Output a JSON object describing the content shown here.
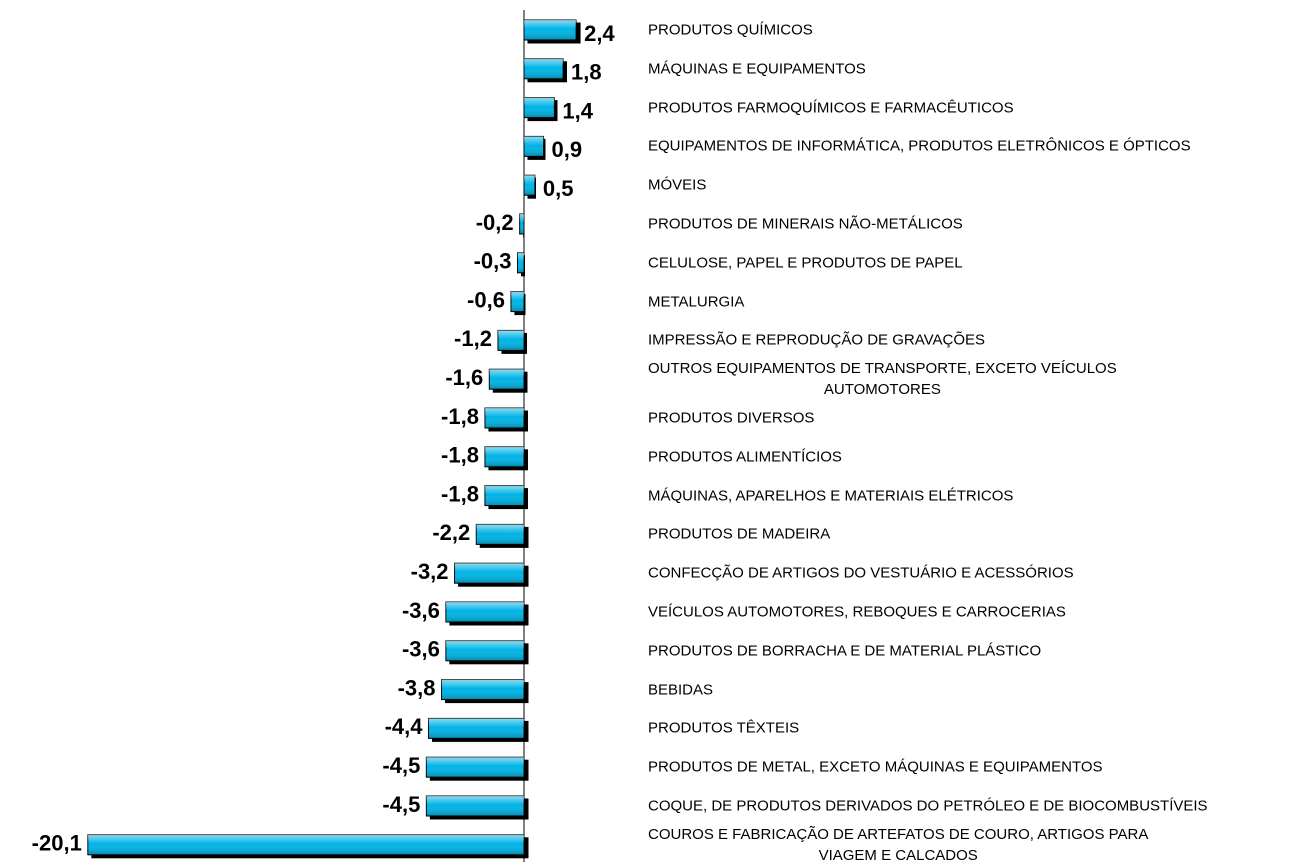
{
  "chart_data": {
    "type": "hbar",
    "categories": [
      "PRODUTOS QUÍMICOS",
      "MÁQUINAS E EQUIPAMENTOS",
      "PRODUTOS FARMOQUÍMICOS E FARMACÊUTICOS",
      "EQUIPAMENTOS DE INFORMÁTICA, PRODUTOS ELETRÔNICOS E ÓPTICOS",
      "MÓVEIS",
      "PRODUTOS DE MINERAIS NÃO-METÁLICOS",
      "CELULOSE, PAPEL E PRODUTOS DE PAPEL",
      "METALURGIA",
      "IMPRESSÃO E REPRODUÇÃO DE GRAVAÇÕES",
      "OUTROS EQUIPAMENTOS DE TRANSPORTE, EXCETO VEÍCULOS\nAUTOMOTORES",
      "PRODUTOS DIVERSOS",
      "PRODUTOS ALIMENTÍCIOS",
      "MÁQUINAS, APARELHOS E MATERIAIS ELÉTRICOS",
      "PRODUTOS DE MADEIRA",
      "CONFECÇÃO DE ARTIGOS DO VESTUÁRIO E ACESSÓRIOS",
      "VEÍCULOS AUTOMOTORES, REBOQUES E CARROCERIAS",
      "PRODUTOS DE BORRACHA E DE MATERIAL PLÁSTICO",
      "BEBIDAS",
      "PRODUTOS TÊXTEIS",
      "PRODUTOS DE METAL, EXCETO MÁQUINAS E EQUIPAMENTOS",
      "COQUE, DE PRODUTOS DERIVADOS DO PETRÓLEO E DE BIOCOMBUSTÍVEIS",
      "COUROS E FABRICAÇÃO DE ARTEFATOS DE COURO, ARTIGOS PARA\nVIAGEM E CALCADOS"
    ],
    "values": [
      2.4,
      1.8,
      1.4,
      0.9,
      0.5,
      -0.2,
      -0.3,
      -0.6,
      -1.2,
      -1.6,
      -1.8,
      -1.8,
      -1.8,
      -2.2,
      -3.2,
      -3.6,
      -3.6,
      -3.8,
      -4.4,
      -4.5,
      -4.5,
      -20.1
    ],
    "value_labels": [
      "2,4",
      "1,8",
      "1,4",
      "0,9",
      "0,5",
      "-0,2",
      "-0,3",
      "-0,6",
      "-1,2",
      "-1,6",
      "-1,8",
      "-1,8",
      "-1,8",
      "-2,2",
      "-3,2",
      "-3,6",
      "-3,6",
      "-3,8",
      "-4,4",
      "-4,5",
      "-4,5",
      "-20,1"
    ],
    "color": "#00b4e6"
  }
}
